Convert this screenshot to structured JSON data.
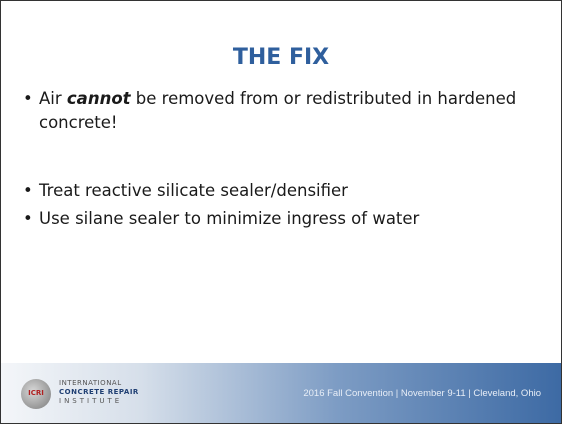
{
  "slide": {
    "title": "THE FIX",
    "bullets": [
      {
        "parts": [
          "Air ",
          "cannot",
          " be removed from or redistributed in hardened concrete!"
        ]
      },
      {
        "parts": [
          "Treat reactive silicate sealer/densifier"
        ]
      },
      {
        "parts": [
          "Use silane sealer to minimize ingress of water"
        ]
      }
    ],
    "footer": {
      "logo": {
        "initials": "ICRI",
        "line1": "INTERNATIONAL",
        "line2": "CONCRETE REPAIR",
        "line3": "INSTITUTE"
      },
      "event": "2016 Fall Convention | November 9-11 | Cleveland, Ohio"
    }
  }
}
